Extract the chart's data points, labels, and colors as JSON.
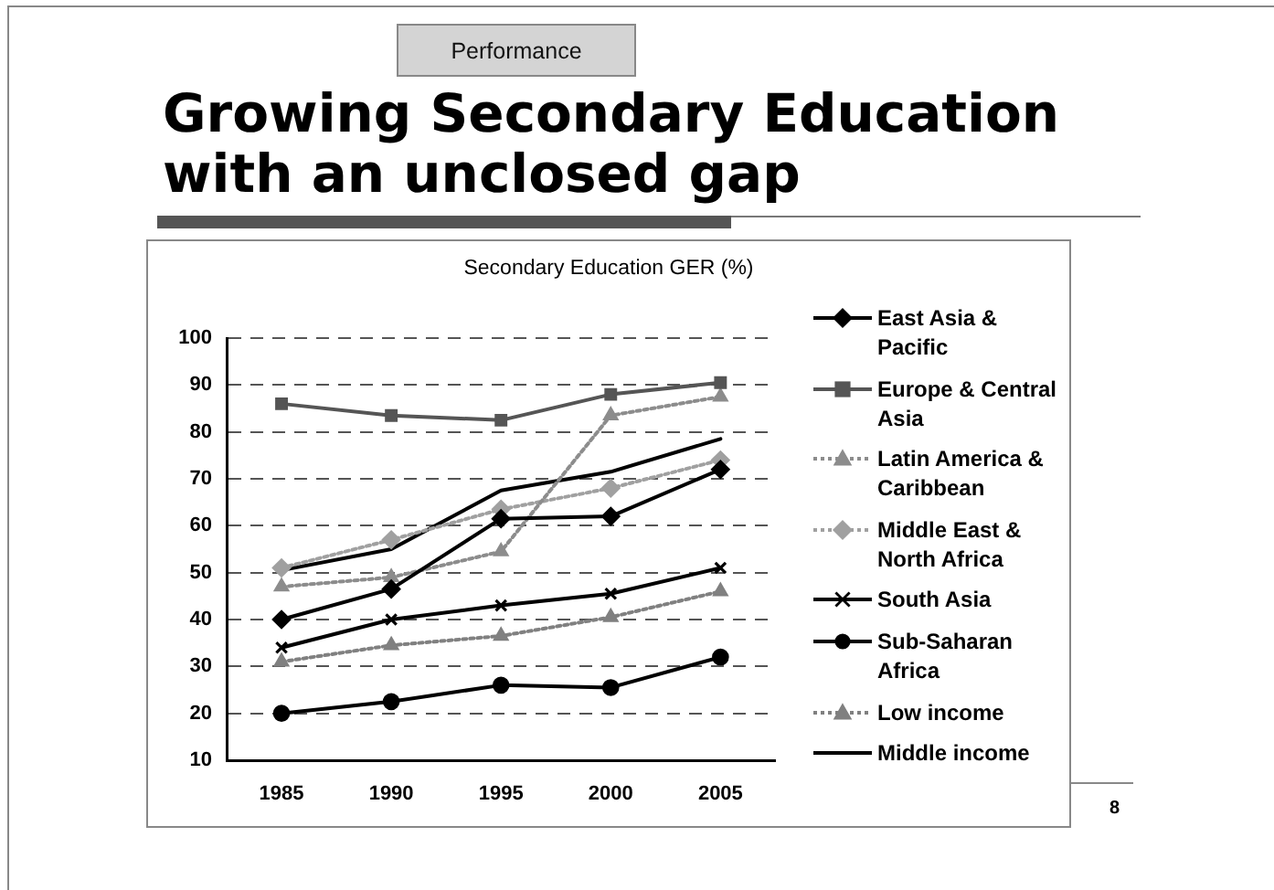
{
  "chart_data": {
    "type": "line",
    "title": "Growing Secondary Education with an unclosed gap",
    "subtitle": "Secondary Education GER (%)",
    "annotations": [
      "Performance",
      "8"
    ],
    "categories": [
      "1985",
      "1990",
      "1995",
      "2000",
      "2005"
    ],
    "ylim": [
      10,
      100
    ],
    "yticks": [
      10,
      20,
      30,
      40,
      50,
      60,
      70,
      80,
      90,
      100
    ],
    "grid": "y",
    "legend": "right",
    "series": [
      {
        "name": "East Asia & Pacific",
        "color": "#000000",
        "marker": "diamond",
        "line_style": "solid",
        "values": [
          40,
          46.5,
          61.5,
          62,
          72
        ]
      },
      {
        "name": "Europe & Central Asia",
        "color": "#555555",
        "marker": "square",
        "line_style": "solid",
        "values": [
          86,
          83.5,
          82.5,
          88,
          90.5
        ]
      },
      {
        "name": "Latin America & Caribbean",
        "color": "#8c8c8c",
        "marker": "triangle",
        "line_style": "dotted",
        "values": [
          47,
          49,
          54.5,
          83.5,
          87.5
        ]
      },
      {
        "name": "Middle East & North Africa",
        "color": "#a0a0a0",
        "marker": "diamond",
        "line_style": "dotted",
        "values": [
          51,
          57,
          63.5,
          68,
          74
        ]
      },
      {
        "name": "South Asia",
        "color": "#000000",
        "marker": "cross",
        "line_style": "solid",
        "values": [
          34,
          40,
          43,
          45.5,
          51
        ]
      },
      {
        "name": "Sub-Saharan Africa",
        "color": "#000000",
        "marker": "circle",
        "line_style": "solid",
        "values": [
          20,
          22.5,
          26,
          25.5,
          32
        ]
      },
      {
        "name": "Low income",
        "color": "#808080",
        "marker": "triangle",
        "line_style": "dotted",
        "values": [
          31,
          34.5,
          36.5,
          40.5,
          46
        ]
      },
      {
        "name": "Middle income",
        "color": "#000000",
        "marker": "none",
        "line_style": "solid",
        "values": [
          50.5,
          55,
          67.5,
          71.5,
          78.5
        ]
      }
    ]
  }
}
